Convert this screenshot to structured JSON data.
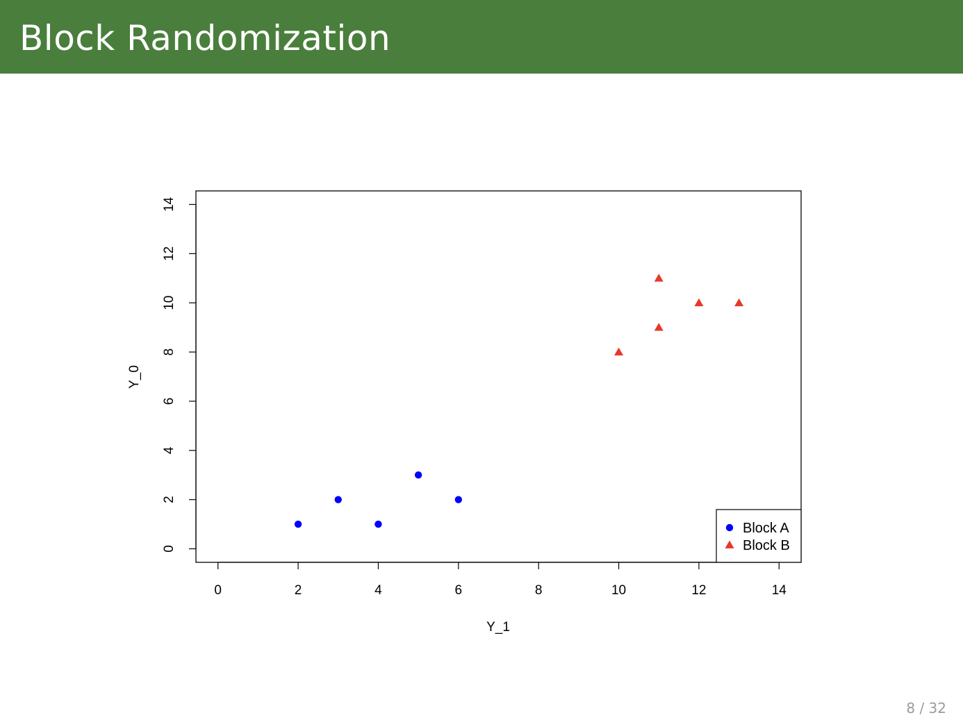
{
  "header": {
    "title": "Block Randomization"
  },
  "footer": {
    "page": "8 / 32"
  },
  "chart_data": {
    "type": "scatter",
    "xlabel": "Y_1",
    "ylabel": "Y_0",
    "xlim": [
      -0.55,
      14.55
    ],
    "ylim": [
      -0.55,
      14.55
    ],
    "xticks": [
      0,
      2,
      4,
      6,
      8,
      10,
      12,
      14
    ],
    "yticks": [
      0,
      2,
      4,
      6,
      8,
      10,
      12,
      14
    ],
    "grid": false,
    "legend_position": "bottom-right",
    "series": [
      {
        "name": "Block A",
        "marker": "circle",
        "color": "#0000ff",
        "points": [
          [
            2,
            1
          ],
          [
            3,
            2
          ],
          [
            4,
            1
          ],
          [
            5,
            3
          ],
          [
            6,
            2
          ]
        ]
      },
      {
        "name": "Block B",
        "marker": "triangle",
        "color": "#e8372b",
        "points": [
          [
            10,
            8
          ],
          [
            11,
            9
          ],
          [
            11,
            11
          ],
          [
            12,
            10
          ],
          [
            13,
            10
          ]
        ]
      }
    ]
  }
}
